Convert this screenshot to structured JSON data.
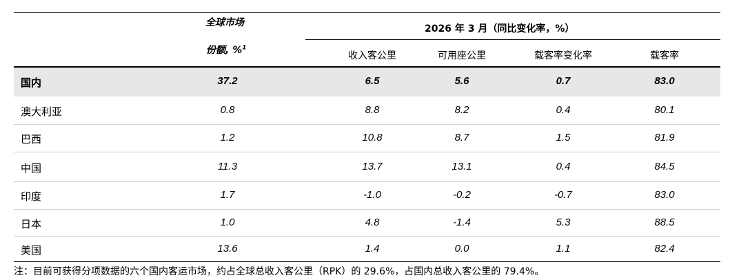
{
  "header": {
    "share_line1": "全球市场",
    "share_line2": "份额, %",
    "share_sup": "1",
    "group_title": "2026 年 3 月（同比变化率，%）",
    "col_rpk": "收入客公里",
    "col_ask": "可用座公里",
    "col_plf_change": "载客率变化率",
    "col_plf": "载客率"
  },
  "rows": [
    {
      "name": "国内",
      "share": "37.2",
      "rpk": "6.5",
      "ask": "5.6",
      "plf_change": "0.7",
      "plf": "83.0"
    },
    {
      "name": "澳大利亚",
      "share": "0.8",
      "rpk": "8.8",
      "ask": "8.2",
      "plf_change": "0.4",
      "plf": "80.1"
    },
    {
      "name": "巴西",
      "share": "1.2",
      "rpk": "10.8",
      "ask": "8.7",
      "plf_change": "1.5",
      "plf": "81.9"
    },
    {
      "name": "中国",
      "share": "11.3",
      "rpk": "13.7",
      "ask": "13.1",
      "plf_change": "0.4",
      "plf": "84.5"
    },
    {
      "name": "印度",
      "share": "1.7",
      "rpk": "-1.0",
      "ask": "-0.2",
      "plf_change": "-0.7",
      "plf": "83.0"
    },
    {
      "name": "日本",
      "share": "1.0",
      "rpk": "4.8",
      "ask": "-1.4",
      "plf_change": "5.3",
      "plf": "88.5"
    },
    {
      "name": "美国",
      "share": "13.6",
      "rpk": "1.4",
      "ask": "0.0",
      "plf_change": "1.1",
      "plf": "82.4"
    }
  ],
  "note": "注：目前可获得分项数据的六个国内客运市场，约占全球总收入客公里（RPK）的 29.6%，占国内总收入客公里的 79.4%。"
}
